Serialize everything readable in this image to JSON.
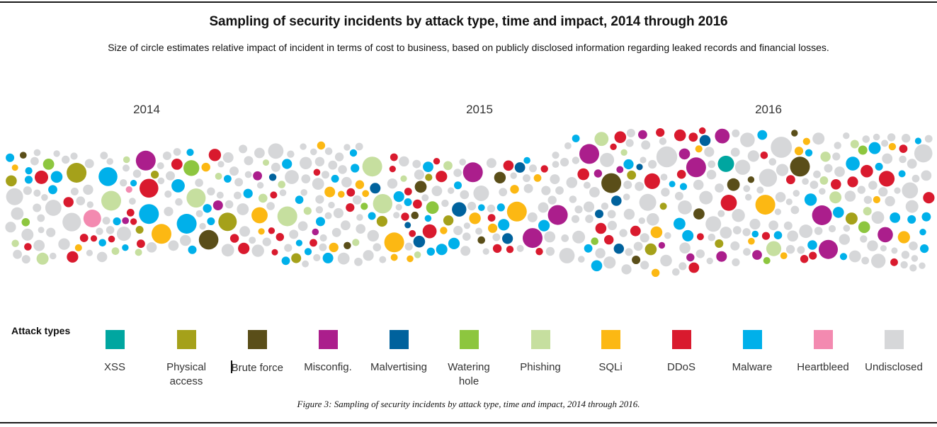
{
  "chart_data": {
    "type": "scatter",
    "subtype": "packed-bubble-timeline",
    "title": "Sampling of security incidents by attack type, time and impact, 2014 through 2016",
    "subtitle": "Size of circle estimates relative impact of incident in terms of cost to business, based on publicly disclosed information regarding leaked records and financial losses.",
    "xlabel": "",
    "ylabel": "",
    "x_tick_labels": [
      "2014",
      "2015",
      "2016"
    ],
    "xlim": [
      2013.7,
      2016.65
    ],
    "grid": false,
    "legend_title": "Attack types",
    "legend_position": "bottom",
    "categories": [
      {
        "key": "xss",
        "label": "XSS",
        "color": "#00a6a0"
      },
      {
        "key": "physical",
        "label": "Physical access",
        "color": "#a5a11a"
      },
      {
        "key": "brute",
        "label": "Brute force",
        "color": "#5a4e19"
      },
      {
        "key": "misconfig",
        "label": "Misconfig.",
        "color": "#ab1e8c"
      },
      {
        "key": "malvertising",
        "label": "Malvertising",
        "color": "#00629d"
      },
      {
        "key": "watering",
        "label": "Watering hole",
        "color": "#8dc63f"
      },
      {
        "key": "phishing",
        "label": "Phishing",
        "color": "#c6df9f"
      },
      {
        "key": "sqli",
        "label": "SQLi",
        "color": "#fcb813"
      },
      {
        "key": "ddos",
        "label": "DDoS",
        "color": "#d91a2e"
      },
      {
        "key": "malware",
        "label": "Malware",
        "color": "#00b0ea"
      },
      {
        "key": "heartbleed",
        "label": "Heartbleed",
        "color": "#f38ab0"
      },
      {
        "key": "undisclosed",
        "label": "Undisclosed",
        "color": "#d6d7d9"
      }
    ],
    "notable_incidents": [
      {
        "t": 2013.93,
        "type": "physical",
        "impact": 1.0
      },
      {
        "t": 2013.98,
        "type": "heartbleed",
        "impact": 0.7
      },
      {
        "t": 2014.04,
        "type": "phishing",
        "impact": 1.0
      },
      {
        "t": 2014.03,
        "type": "malware",
        "impact": 0.85
      },
      {
        "t": 2014.15,
        "type": "misconfig",
        "impact": 1.0
      },
      {
        "t": 2014.16,
        "type": "malware",
        "impact": 1.0
      },
      {
        "t": 2014.16,
        "type": "ddos",
        "impact": 0.85
      },
      {
        "t": 2014.2,
        "type": "sqli",
        "impact": 1.0
      },
      {
        "t": 2014.28,
        "type": "malware",
        "impact": 1.0
      },
      {
        "t": 2014.31,
        "type": "phishing",
        "impact": 0.9
      },
      {
        "t": 2014.35,
        "type": "brute",
        "impact": 0.95
      },
      {
        "t": 2014.41,
        "type": "physical",
        "impact": 0.8
      },
      {
        "t": 2014.6,
        "type": "phishing",
        "impact": 1.0
      },
      {
        "t": 2014.87,
        "type": "phishing",
        "impact": 1.0
      },
      {
        "t": 2014.94,
        "type": "sqli",
        "impact": 1.0
      },
      {
        "t": 2015.19,
        "type": "misconfig",
        "impact": 1.0
      },
      {
        "t": 2015.33,
        "type": "sqli",
        "impact": 1.0
      },
      {
        "t": 2015.38,
        "type": "misconfig",
        "impact": 1.0
      },
      {
        "t": 2015.46,
        "type": "misconfig",
        "impact": 1.0
      },
      {
        "t": 2015.56,
        "type": "misconfig",
        "impact": 1.0
      },
      {
        "t": 2015.63,
        "type": "brute",
        "impact": 1.0
      },
      {
        "t": 2015.9,
        "type": "misconfig",
        "impact": 1.0
      },
      {
        "t": 2016.12,
        "type": "sqli",
        "impact": 1.0
      },
      {
        "t": 2016.23,
        "type": "brute",
        "impact": 1.0
      },
      {
        "t": 2016.3,
        "type": "misconfig",
        "impact": 1.0
      },
      {
        "t": 2016.32,
        "type": "misconfig",
        "impact": 0.9
      }
    ]
  },
  "caption": "Figure 3: Sampling of security incidents by attack type, time and impact, 2014 through 2016."
}
